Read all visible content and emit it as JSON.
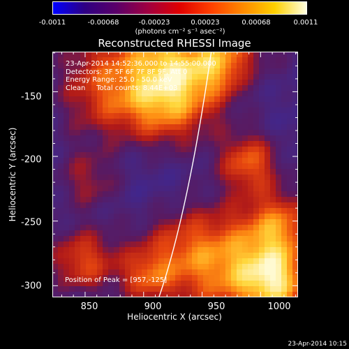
{
  "colorbar": {
    "ticks": [
      "-0.0011",
      "-0.00068",
      "-0.00023",
      "0.00023",
      "0.00068",
      "0.0011"
    ],
    "unit": "(photons cm⁻² s⁻¹ asec⁻²)",
    "gradient": [
      "#0000ff",
      "#2e0082",
      "#5a0069",
      "#a00040",
      "#e00000",
      "#ff4000",
      "#ff8a00",
      "#ffd000",
      "#ffffe0"
    ]
  },
  "title": "Reconstructed RHESSI Image",
  "info": {
    "line1": "23-Apr-2014 14:52:36.000 to 14:55:00.000",
    "line2": "Detectors: 3F 5F 6F 7F 8F 9F, Att 0",
    "line3": "Energy Range: 25.0 - 50.0 keV",
    "line4": "Clean     Total counts: 8.44E+03"
  },
  "peak_text": "Position of Peak = [957,-125]",
  "axes": {
    "xlabel": "Heliocentric X (arcsec)",
    "ylabel": "Heliocentric Y (arcsec)",
    "xticks": [
      "850",
      "900",
      "950",
      "1000"
    ],
    "yticks": [
      "-150",
      "-200",
      "-250",
      "-300"
    ],
    "xlim": [
      822,
      1032
    ],
    "ylim": [
      -309,
      -119
    ]
  },
  "datestamp": "23-Apr-2014 10:15",
  "palette": {
    "background": "#000000",
    "dark_purple": "#3a1a6a",
    "purple": "#5a2a8a",
    "blue": "#2a2acc",
    "red": "#c02010",
    "orange": "#ff8010",
    "yellow": "#ffe060"
  }
}
